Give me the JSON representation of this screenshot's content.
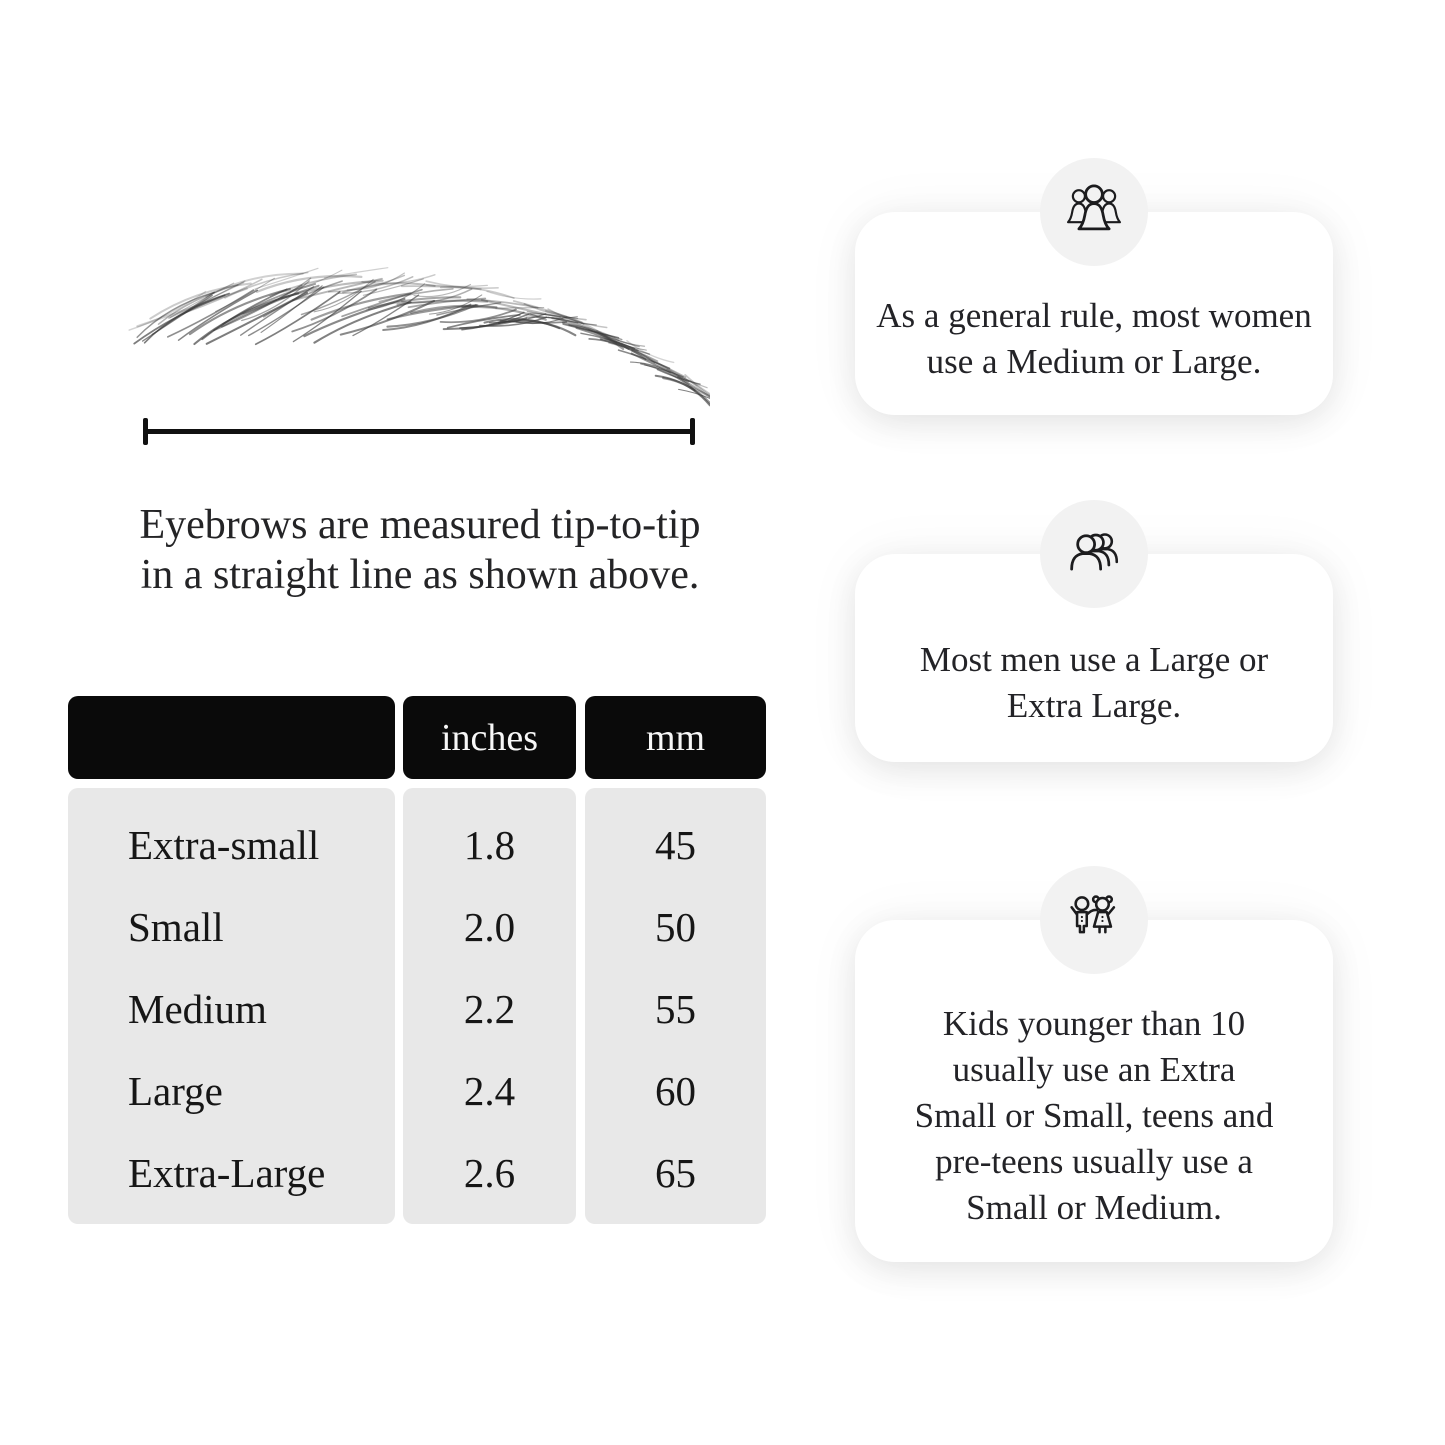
{
  "colors": {
    "page_bg": "#ffffff",
    "table_header_bg": "#0a0a0a",
    "table_header_text": "#f7f7f7",
    "table_body_bg": "#e8e8e8",
    "card_bg": "#ffffff",
    "icon_badge_bg": "#f2f2f2",
    "ink": "#1c1c1e"
  },
  "measurement": {
    "illustration": "eyebrow-sketch",
    "caption": "Eyebrows are measured tip-to-tip\nin a straight line as shown above."
  },
  "size_table": {
    "columns": [
      "",
      "inches",
      "mm"
    ],
    "rows": [
      {
        "size": "Extra-small",
        "inches": "1.8",
        "mm": "45"
      },
      {
        "size": "Small",
        "inches": "2.0",
        "mm": "50"
      },
      {
        "size": "Medium",
        "inches": "2.2",
        "mm": "55"
      },
      {
        "size": "Large",
        "inches": "2.4",
        "mm": "60"
      },
      {
        "size": "Extra-Large",
        "inches": "2.6",
        "mm": "65"
      }
    ]
  },
  "cards": [
    {
      "icon": "women-group-icon",
      "text": "As a general rule, most women\nuse a Medium or Large."
    },
    {
      "icon": "men-group-icon",
      "text": "Most men use a Large or\nExtra Large."
    },
    {
      "icon": "kids-icon",
      "text": "Kids younger than 10\nusually use an Extra\nSmall or Small, teens and\npre-teens usually use a\nSmall or Medium."
    }
  ]
}
